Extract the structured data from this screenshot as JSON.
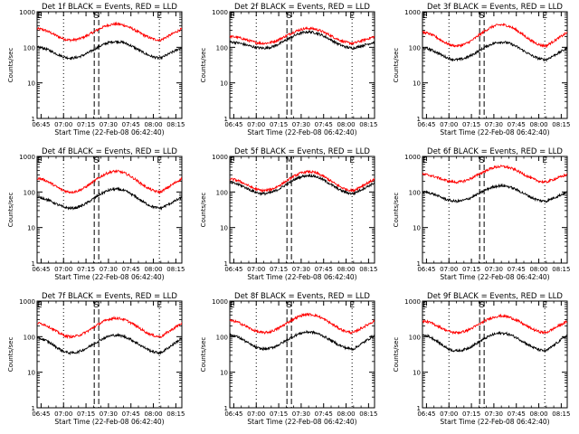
{
  "chart_data": {
    "type": "line",
    "layout": "3x3 grid of panels",
    "xlabel": "Start Time (22-Feb-08 06:42:40)",
    "ylabel": "Counts/sec",
    "yscale": "log",
    "ylim": [
      1,
      1000
    ],
    "y_ticks": [
      "1",
      "10",
      "100",
      "1000"
    ],
    "xlim_minutes_after_0645": [
      -2.67,
      94
    ],
    "x_ticks": [
      {
        "minute": 0,
        "label": "06:45"
      },
      {
        "minute": 15,
        "label": "07:00"
      },
      {
        "minute": 30,
        "label": "07:15"
      },
      {
        "minute": 45,
        "label": "07:30"
      },
      {
        "minute": 60,
        "label": "07:45"
      },
      {
        "minute": 75,
        "label": "08:00"
      },
      {
        "minute": 90,
        "label": "08:15"
      }
    ],
    "series_colors": {
      "events": "#000000",
      "lld": "#ff0000"
    },
    "marker_lines": [
      {
        "style": "dotted",
        "minute": 15
      },
      {
        "style": "dashed",
        "minute": 35.5
      },
      {
        "style": "dashed",
        "minute": 38.5
      },
      {
        "style": "dotted",
        "minute": 79
      }
    ],
    "marker_letters_minutes": [
      -1,
      37,
      79
    ],
    "panels": [
      {
        "title": "Det 1f BLACK = Events, RED = LLD",
        "marks": [
          "E",
          "S",
          "E"
        ],
        "events": {
          "min": 50,
          "max": 145,
          "edge": 100
        },
        "lld": {
          "min": 160,
          "max": 450,
          "edge": 330
        }
      },
      {
        "title": "Det 2f BLACK = Events, RED = LLD",
        "marks": [
          "E",
          "S",
          "E"
        ],
        "events": {
          "min": 95,
          "max": 270,
          "edge": 140
        },
        "lld": {
          "min": 130,
          "max": 340,
          "edge": 200
        }
      },
      {
        "title": "Det 3f BLACK = Events, RED = LLD",
        "marks": [
          "E",
          "S",
          "E"
        ],
        "events": {
          "min": 45,
          "max": 140,
          "edge": 95
        },
        "lld": {
          "min": 110,
          "max": 430,
          "edge": 260
        }
      },
      {
        "title": "Det 4f BLACK = Events, RED = LLD",
        "marks": [
          "E",
          "S",
          "E"
        ],
        "events": {
          "min": 35,
          "max": 120,
          "edge": 70
        },
        "lld": {
          "min": 100,
          "max": 380,
          "edge": 240
        }
      },
      {
        "title": "Det 5f BLACK = Events, RED = LLD",
        "marks": [
          "E",
          "M",
          "E"
        ],
        "events": {
          "min": 90,
          "max": 290,
          "edge": 180
        },
        "lld": {
          "min": 110,
          "max": 370,
          "edge": 230
        }
      },
      {
        "title": "Det 6f BLACK = Events, RED = LLD",
        "marks": [
          "E",
          "S",
          "E"
        ],
        "events": {
          "min": 55,
          "max": 150,
          "edge": 100
        },
        "lld": {
          "min": 190,
          "max": 520,
          "edge": 310
        }
      },
      {
        "title": "Det 7f BLACK = Events, RED = LLD",
        "marks": [
          "E",
          "S",
          "E"
        ],
        "events": {
          "min": 35,
          "max": 110,
          "edge": 90
        },
        "lld": {
          "min": 100,
          "max": 330,
          "edge": 240
        }
      },
      {
        "title": "Det 8f BLACK = Events, RED = LLD",
        "marks": [
          "E",
          "S",
          "E"
        ],
        "events": {
          "min": 45,
          "max": 135,
          "edge": 110
        },
        "lld": {
          "min": 130,
          "max": 420,
          "edge": 280
        }
      },
      {
        "title": "Det 9f BLACK = Events, RED = LLD",
        "marks": [
          "E",
          "S",
          "E"
        ],
        "events": {
          "min": 40,
          "max": 125,
          "edge": 110
        },
        "lld": {
          "min": 130,
          "max": 380,
          "edge": 270
        }
      }
    ]
  }
}
